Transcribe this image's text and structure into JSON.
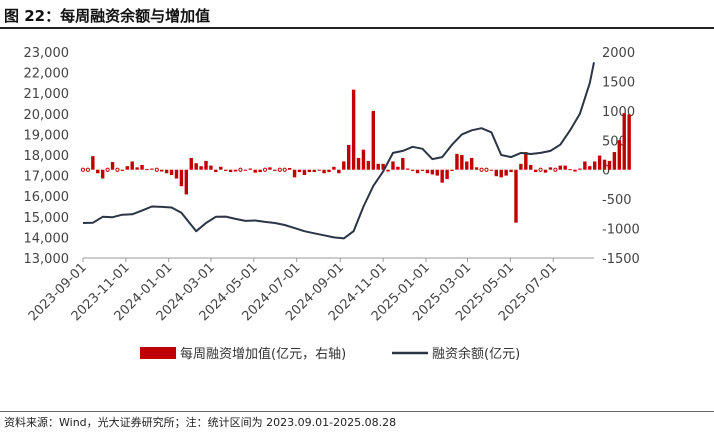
{
  "header": {
    "title": "图 22：每周融资余额与增加值"
  },
  "footer": {
    "source": "资料来源：Wind，光大证券研究所；注：统计区间为 2023.09.01-2025.08.28"
  },
  "colors": {
    "bar": "#c00000",
    "line": "#2b3545"
  },
  "chart_data": {
    "type": "bar+line",
    "title": "",
    "x_ticks": [
      "2023-09-01",
      "2023-11-01",
      "2024-01-01",
      "2024-03-01",
      "2024-05-01",
      "2024-07-01",
      "2024-09-01",
      "2024-11-01",
      "2025-01-01",
      "2025-03-01",
      "2025-05-01",
      "2025-07-01"
    ],
    "left_axis": {
      "ticks": [
        "23,000",
        "22,000",
        "21,000",
        "20,000",
        "19,000",
        "18,000",
        "17,000",
        "16,000",
        "15,000",
        "14,000",
        "13,000"
      ],
      "range": [
        13000,
        23000
      ]
    },
    "right_axis": {
      "ticks": [
        "2000",
        "1500",
        "1000",
        "500",
        "0",
        "-500",
        "-1000",
        "-1500"
      ],
      "range": [
        -1500,
        2000
      ]
    },
    "legend": {
      "position": "bottom",
      "bar_label": "每周融资增加值(亿元，右轴)",
      "line_label": "融资余额(亿元)"
    },
    "series": [
      {
        "name": "每周融资增加值(亿元，右轴)",
        "type": "bar",
        "axis": "right",
        "start_date": "2023-09-01",
        "values": [
          0,
          0,
          230,
          -60,
          -150,
          0,
          130,
          0,
          -20,
          60,
          140,
          40,
          80,
          10,
          20,
          0,
          -30,
          -60,
          -90,
          -150,
          -280,
          -420,
          200,
          110,
          60,
          150,
          70,
          -40,
          50,
          -20,
          -40,
          -30,
          0,
          -10,
          20,
          -50,
          -40,
          0,
          40,
          -20,
          0,
          0,
          30,
          -130,
          -40,
          -90,
          -40,
          -40,
          -10,
          -60,
          -40,
          50,
          -60,
          140,
          420,
          1360,
          200,
          340,
          150,
          1000,
          100,
          100,
          -30,
          140,
          50,
          200,
          20,
          -20,
          -60,
          -20,
          -60,
          -80,
          -100,
          -220,
          -160,
          -20,
          270,
          250,
          140,
          200,
          40,
          0,
          0,
          -10,
          -110,
          -130,
          -100,
          -40,
          -900,
          100,
          300,
          80,
          -40,
          0,
          -50,
          40,
          0,
          70,
          70,
          10,
          -30,
          20,
          140,
          60,
          140,
          240,
          170,
          150,
          300,
          500,
          960,
          940
        ]
      },
      {
        "name": "融资余额(亿元)",
        "type": "line",
        "axis": "left",
        "start_date": "2023-09-01",
        "points": [
          [
            "2023-09-01",
            14700
          ],
          [
            "2023-09-15",
            14710
          ],
          [
            "2023-09-29",
            15000
          ],
          [
            "2023-10-13",
            14980
          ],
          [
            "2023-10-27",
            15100
          ],
          [
            "2023-11-10",
            15120
          ],
          [
            "2023-11-24",
            15300
          ],
          [
            "2023-12-08",
            15500
          ],
          [
            "2023-12-22",
            15480
          ],
          [
            "2024-01-05",
            15450
          ],
          [
            "2024-01-19",
            15200
          ],
          [
            "2024-02-02",
            14600
          ],
          [
            "2024-02-09",
            14300
          ],
          [
            "2024-02-23",
            14700
          ],
          [
            "2024-03-08",
            15000
          ],
          [
            "2024-03-22",
            15010
          ],
          [
            "2024-04-05",
            14900
          ],
          [
            "2024-04-19",
            14800
          ],
          [
            "2024-05-03",
            14820
          ],
          [
            "2024-05-17",
            14750
          ],
          [
            "2024-05-31",
            14700
          ],
          [
            "2024-06-14",
            14600
          ],
          [
            "2024-06-28",
            14450
          ],
          [
            "2024-07-12",
            14300
          ],
          [
            "2024-07-26",
            14200
          ],
          [
            "2024-08-09",
            14100
          ],
          [
            "2024-08-23",
            14000
          ],
          [
            "2024-09-06",
            13950
          ],
          [
            "2024-09-20",
            14300
          ],
          [
            "2024-10-04",
            15500
          ],
          [
            "2024-10-18",
            16500
          ],
          [
            "2024-11-01",
            17200
          ],
          [
            "2024-11-15",
            18100
          ],
          [
            "2024-11-29",
            18200
          ],
          [
            "2024-12-13",
            18400
          ],
          [
            "2024-12-27",
            18300
          ],
          [
            "2025-01-10",
            17800
          ],
          [
            "2025-01-24",
            17900
          ],
          [
            "2025-02-07",
            18500
          ],
          [
            "2025-02-21",
            19000
          ],
          [
            "2025-03-07",
            19200
          ],
          [
            "2025-03-21",
            19300
          ],
          [
            "2025-04-04",
            19100
          ],
          [
            "2025-04-18",
            18000
          ],
          [
            "2025-05-02",
            17900
          ],
          [
            "2025-05-16",
            18100
          ],
          [
            "2025-05-30",
            18050
          ],
          [
            "2025-06-13",
            18100
          ],
          [
            "2025-06-27",
            18200
          ],
          [
            "2025-07-11",
            18500
          ],
          [
            "2025-07-25",
            19200
          ],
          [
            "2025-08-08",
            20000
          ],
          [
            "2025-08-22",
            21500
          ],
          [
            "2025-08-28",
            22500
          ]
        ]
      }
    ]
  }
}
